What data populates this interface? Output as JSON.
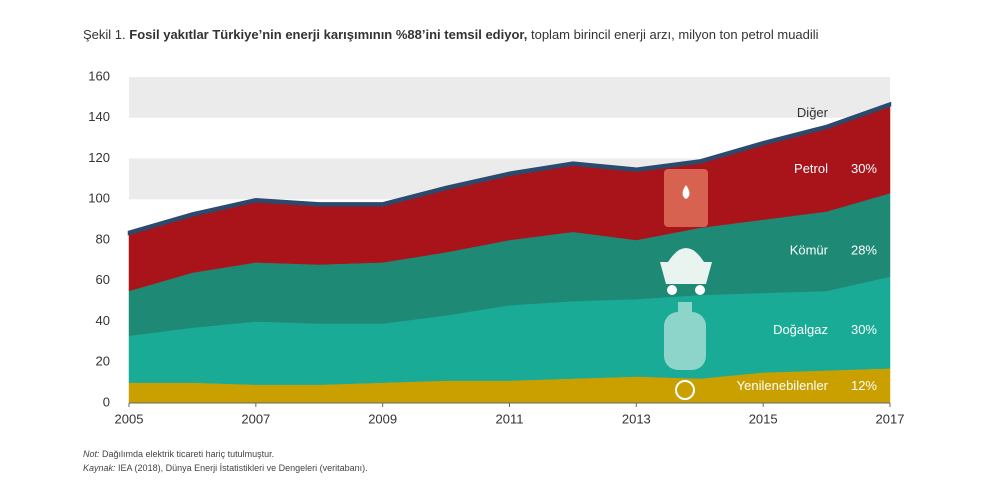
{
  "chart_data": {
    "type": "stacked_area",
    "title": [
      "Şekil 1.",
      "Fosil yakıtlar Türkiye’nin enerji karışımının %88’ini temsil ediyor,",
      "toplam birincil enerji arzı, milyon ton petrol muadili"
    ],
    "x": [
      2005,
      2006,
      2007,
      2008,
      2009,
      2010,
      2011,
      2012,
      2013,
      2014,
      2015,
      2016,
      2017
    ],
    "xlim": [
      2005,
      2017
    ],
    "xticks": [
      2005,
      2007,
      2009,
      2011,
      2013,
      2015,
      2017
    ],
    "ylim": [
      0,
      160
    ],
    "yticks": [
      0,
      20,
      40,
      60,
      80,
      100,
      120,
      140,
      160
    ],
    "grid": "bands",
    "series": [
      {
        "name": "Yenilenebilenler",
        "color": "#c9a000",
        "share": 12,
        "share_label": "12%",
        "values": [
          10,
          10,
          9,
          9,
          10,
          11,
          11,
          12,
          13,
          12,
          15,
          16,
          17
        ]
      },
      {
        "name": "Doğalgaz",
        "color": "#1aab96",
        "share": 30,
        "share_label": "30%",
        "values": [
          23,
          27,
          31,
          30,
          29,
          32,
          37,
          38,
          38,
          41,
          39,
          39,
          45
        ]
      },
      {
        "name": "Kömür",
        "color": "#1e8a76",
        "share": 28,
        "share_label": "28%",
        "values": [
          22,
          27,
          29,
          29,
          30,
          31,
          32,
          34,
          29,
          33,
          36,
          39,
          41
        ]
      },
      {
        "name": "Petrol",
        "color": "#a8141a",
        "share": 30,
        "share_label": "30%",
        "values": [
          28,
          28,
          30,
          29,
          28,
          31,
          32,
          33,
          34,
          32,
          37,
          41,
          43
        ]
      },
      {
        "name": "Diğer",
        "color": "#2b4a6e",
        "values": [
          1,
          1,
          1,
          1,
          1,
          1,
          1,
          1,
          1,
          1,
          1,
          1,
          1
        ]
      }
    ],
    "notes": [
      {
        "prefix": "Not:",
        "text": "Dağılımda elektrik ticareti hariç tutulmuştur."
      },
      {
        "prefix": "Kaynak:",
        "text": "IEA (2018), Dünya Enerji İstatistikleri ve Dengeleri (veritabanı)."
      }
    ]
  }
}
